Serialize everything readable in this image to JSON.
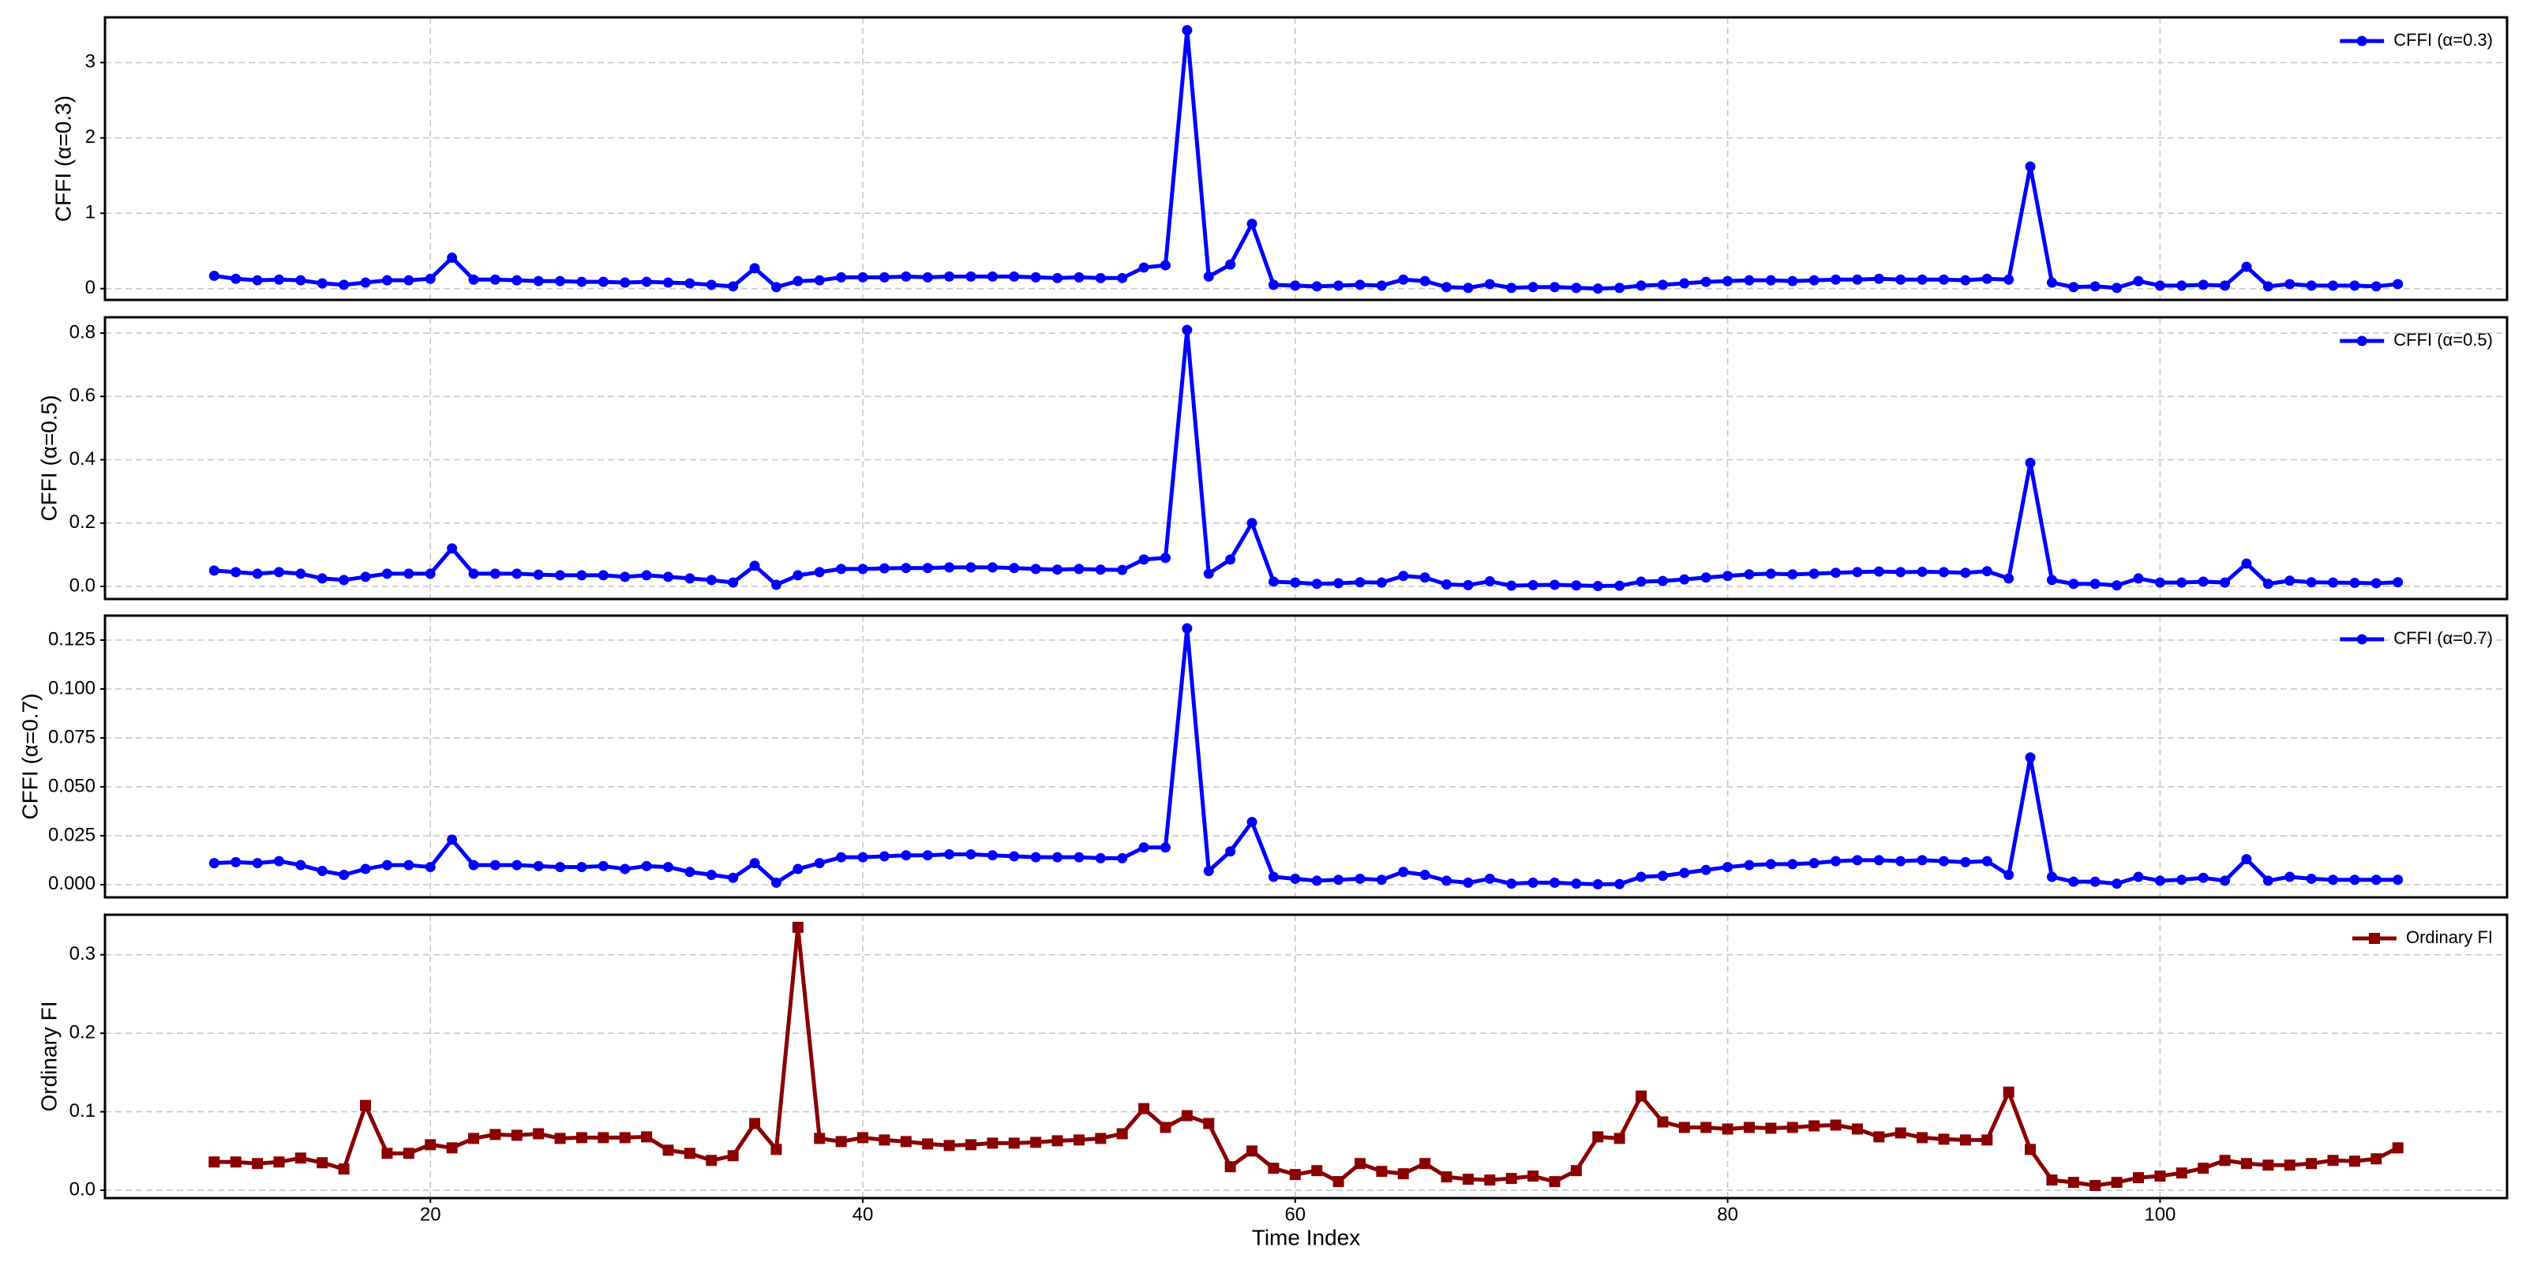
{
  "chart_data": [
    {
      "type": "line",
      "ylabel": "CFFI (α=0.3)",
      "marker": "circle",
      "grid": true,
      "legend": "upper right",
      "x": [
        10,
        11,
        12,
        13,
        14,
        15,
        16,
        17,
        18,
        19,
        20,
        21,
        22,
        23,
        24,
        25,
        26,
        27,
        28,
        29,
        30,
        31,
        32,
        33,
        34,
        35,
        36,
        37,
        38,
        39,
        40,
        41,
        42,
        43,
        44,
        45,
        46,
        47,
        48,
        49,
        50,
        51,
        52,
        53,
        54,
        55,
        56,
        57,
        58,
        59,
        60,
        61,
        62,
        63,
        64,
        65,
        66,
        67,
        68,
        69,
        70,
        71,
        72,
        73,
        74,
        75,
        76,
        77,
        78,
        79,
        80,
        81,
        82,
        83,
        84,
        85,
        86,
        87,
        88,
        89,
        90,
        91,
        92,
        93,
        94,
        95,
        96,
        97,
        98,
        99,
        100,
        101,
        102,
        103,
        104,
        105,
        106,
        107,
        108,
        109,
        110,
        111
      ],
      "xlim": [
        4.95,
        116.05
      ],
      "xticks": [
        20,
        40,
        60,
        80,
        100
      ],
      "ylim": [
        -0.15,
        3.6
      ],
      "yticks": [
        0,
        1,
        2,
        3
      ],
      "series": [
        {
          "name": "CFFI (α=0.3)",
          "color": "#0000ff",
          "values": [
            0.17,
            0.13,
            0.11,
            0.12,
            0.11,
            0.07,
            0.05,
            0.08,
            0.11,
            0.11,
            0.13,
            0.41,
            0.12,
            0.12,
            0.11,
            0.1,
            0.1,
            0.09,
            0.09,
            0.08,
            0.09,
            0.08,
            0.07,
            0.05,
            0.03,
            0.27,
            0.02,
            0.1,
            0.11,
            0.15,
            0.15,
            0.15,
            0.16,
            0.15,
            0.16,
            0.16,
            0.16,
            0.16,
            0.15,
            0.14,
            0.15,
            0.14,
            0.14,
            0.28,
            0.31,
            3.43,
            0.16,
            0.32,
            0.86,
            0.05,
            0.04,
            0.03,
            0.04,
            0.05,
            0.04,
            0.12,
            0.1,
            0.02,
            0.01,
            0.06,
            0.01,
            0.02,
            0.02,
            0.01,
            0.0,
            0.01,
            0.04,
            0.05,
            0.07,
            0.09,
            0.1,
            0.11,
            0.11,
            0.1,
            0.11,
            0.12,
            0.12,
            0.13,
            0.12,
            0.12,
            0.12,
            0.11,
            0.13,
            0.12,
            1.62,
            0.08,
            0.02,
            0.03,
            0.01,
            0.1,
            0.04,
            0.04,
            0.05,
            0.04,
            0.29,
            0.03,
            0.06,
            0.04,
            0.04,
            0.04,
            0.03,
            0.06
          ]
        }
      ]
    },
    {
      "type": "line",
      "ylabel": "CFFI (α=0.5)",
      "marker": "circle",
      "grid": true,
      "legend": "upper right",
      "x": [
        10,
        11,
        12,
        13,
        14,
        15,
        16,
        17,
        18,
        19,
        20,
        21,
        22,
        23,
        24,
        25,
        26,
        27,
        28,
        29,
        30,
        31,
        32,
        33,
        34,
        35,
        36,
        37,
        38,
        39,
        40,
        41,
        42,
        43,
        44,
        45,
        46,
        47,
        48,
        49,
        50,
        51,
        52,
        53,
        54,
        55,
        56,
        57,
        58,
        59,
        60,
        61,
        62,
        63,
        64,
        65,
        66,
        67,
        68,
        69,
        70,
        71,
        72,
        73,
        74,
        75,
        76,
        77,
        78,
        79,
        80,
        81,
        82,
        83,
        84,
        85,
        86,
        87,
        88,
        89,
        90,
        91,
        92,
        93,
        94,
        95,
        96,
        97,
        98,
        99,
        100,
        101,
        102,
        103,
        104,
        105,
        106,
        107,
        108,
        109,
        110,
        111
      ],
      "xlim": [
        4.95,
        116.05
      ],
      "xticks": [
        20,
        40,
        60,
        80,
        100
      ],
      "ylim": [
        -0.04,
        0.85
      ],
      "yticks": [
        {
          "value": 0,
          "label": "0.0"
        },
        0.2,
        0.4,
        0.6,
        0.8
      ],
      "series": [
        {
          "name": "CFFI (α=0.5)",
          "color": "#0000ff",
          "values": [
            0.05,
            0.045,
            0.04,
            0.045,
            0.04,
            0.025,
            0.02,
            0.03,
            0.04,
            0.04,
            0.04,
            0.12,
            0.04,
            0.04,
            0.04,
            0.037,
            0.035,
            0.035,
            0.035,
            0.03,
            0.035,
            0.03,
            0.025,
            0.02,
            0.012,
            0.065,
            0.005,
            0.035,
            0.045,
            0.055,
            0.055,
            0.057,
            0.058,
            0.058,
            0.06,
            0.06,
            0.06,
            0.058,
            0.055,
            0.053,
            0.055,
            0.053,
            0.052,
            0.085,
            0.09,
            0.81,
            0.04,
            0.085,
            0.2,
            0.015,
            0.012,
            0.008,
            0.01,
            0.013,
            0.012,
            0.033,
            0.028,
            0.006,
            0.004,
            0.016,
            0.002,
            0.004,
            0.005,
            0.003,
            0.001,
            0.002,
            0.015,
            0.017,
            0.022,
            0.028,
            0.033,
            0.038,
            0.04,
            0.038,
            0.04,
            0.043,
            0.045,
            0.047,
            0.045,
            0.046,
            0.045,
            0.043,
            0.048,
            0.025,
            0.39,
            0.02,
            0.008,
            0.008,
            0.003,
            0.025,
            0.012,
            0.012,
            0.015,
            0.012,
            0.072,
            0.008,
            0.018,
            0.013,
            0.012,
            0.011,
            0.01,
            0.013
          ]
        }
      ]
    },
    {
      "type": "line",
      "ylabel": "CFFI (α=0.7)",
      "marker": "circle",
      "grid": true,
      "legend": "upper right",
      "x": [
        10,
        11,
        12,
        13,
        14,
        15,
        16,
        17,
        18,
        19,
        20,
        21,
        22,
        23,
        24,
        25,
        26,
        27,
        28,
        29,
        30,
        31,
        32,
        33,
        34,
        35,
        36,
        37,
        38,
        39,
        40,
        41,
        42,
        43,
        44,
        45,
        46,
        47,
        48,
        49,
        50,
        51,
        52,
        53,
        54,
        55,
        56,
        57,
        58,
        59,
        60,
        61,
        62,
        63,
        64,
        65,
        66,
        67,
        68,
        69,
        70,
        71,
        72,
        73,
        74,
        75,
        76,
        77,
        78,
        79,
        80,
        81,
        82,
        83,
        84,
        85,
        86,
        87,
        88,
        89,
        90,
        91,
        92,
        93,
        94,
        95,
        96,
        97,
        98,
        99,
        100,
        101,
        102,
        103,
        104,
        105,
        106,
        107,
        108,
        109,
        110,
        111
      ],
      "xlim": [
        4.95,
        116.05
      ],
      "xticks": [
        20,
        40,
        60,
        80,
        100
      ],
      "ylim": [
        -0.0065,
        0.1375
      ],
      "yticks": [
        {
          "value": 0,
          "label": "0.000"
        },
        0.025,
        {
          "value": 0.05,
          "label": "0.050"
        },
        0.075,
        {
          "value": 0.1,
          "label": "0.100"
        },
        0.125
      ],
      "series": [
        {
          "name": "CFFI (α=0.7)",
          "color": "#0000ff",
          "values": [
            0.011,
            0.0115,
            0.011,
            0.012,
            0.01,
            0.007,
            0.005,
            0.008,
            0.01,
            0.01,
            0.009,
            0.023,
            0.01,
            0.01,
            0.01,
            0.0095,
            0.009,
            0.009,
            0.0095,
            0.008,
            0.0095,
            0.009,
            0.0065,
            0.005,
            0.0035,
            0.011,
            0.001,
            0.008,
            0.011,
            0.014,
            0.014,
            0.0145,
            0.015,
            0.015,
            0.0155,
            0.0155,
            0.015,
            0.0145,
            0.014,
            0.014,
            0.014,
            0.0135,
            0.0135,
            0.019,
            0.019,
            0.131,
            0.007,
            0.017,
            0.032,
            0.004,
            0.003,
            0.002,
            0.0025,
            0.003,
            0.0025,
            0.0065,
            0.005,
            0.002,
            0.001,
            0.003,
            0.0005,
            0.001,
            0.001,
            0.0005,
            0.0002,
            0.0003,
            0.004,
            0.0045,
            0.006,
            0.0075,
            0.009,
            0.01,
            0.0105,
            0.0105,
            0.011,
            0.012,
            0.0125,
            0.0125,
            0.012,
            0.0125,
            0.012,
            0.0115,
            0.012,
            0.005,
            0.065,
            0.004,
            0.0015,
            0.0015,
            0.0005,
            0.004,
            0.002,
            0.0025,
            0.0035,
            0.002,
            0.013,
            0.002,
            0.004,
            0.003,
            0.0025,
            0.0025,
            0.0025,
            0.0025
          ]
        }
      ]
    },
    {
      "type": "line",
      "ylabel": "Ordinary FI",
      "xlabel": "Time Index",
      "marker": "square",
      "grid": true,
      "legend": "upper right",
      "x": [
        10,
        11,
        12,
        13,
        14,
        15,
        16,
        17,
        18,
        19,
        20,
        21,
        22,
        23,
        24,
        25,
        26,
        27,
        28,
        29,
        30,
        31,
        32,
        33,
        34,
        35,
        36,
        37,
        38,
        39,
        40,
        41,
        42,
        43,
        44,
        45,
        46,
        47,
        48,
        49,
        50,
        51,
        52,
        53,
        54,
        55,
        56,
        57,
        58,
        59,
        60,
        61,
        62,
        63,
        64,
        65,
        66,
        67,
        68,
        69,
        70,
        71,
        72,
        73,
        74,
        75,
        76,
        77,
        78,
        79,
        80,
        81,
        82,
        83,
        84,
        85,
        86,
        87,
        88,
        89,
        90,
        91,
        92,
        93,
        94,
        95,
        96,
        97,
        98,
        99,
        100,
        101,
        102,
        103,
        104,
        105,
        106,
        107,
        108,
        109,
        110,
        111
      ],
      "xlim": [
        4.95,
        116.05
      ],
      "xticks": [
        20,
        40,
        60,
        80,
        100
      ],
      "ylim": [
        -0.01,
        0.351
      ],
      "yticks": [
        {
          "value": 0,
          "label": "0.0"
        },
        0.1,
        0.2,
        0.3
      ],
      "series": [
        {
          "name": "Ordinary FI",
          "color": "#8b0000",
          "values": [
            0.036,
            0.036,
            0.034,
            0.036,
            0.041,
            0.035,
            0.027,
            0.108,
            0.047,
            0.047,
            0.058,
            0.054,
            0.066,
            0.071,
            0.07,
            0.072,
            0.066,
            0.067,
            0.067,
            0.067,
            0.068,
            0.051,
            0.047,
            0.038,
            0.044,
            0.085,
            0.052,
            0.335,
            0.066,
            0.062,
            0.067,
            0.064,
            0.062,
            0.059,
            0.057,
            0.058,
            0.06,
            0.06,
            0.061,
            0.063,
            0.064,
            0.066,
            0.072,
            0.104,
            0.08,
            0.095,
            0.085,
            0.03,
            0.05,
            0.028,
            0.02,
            0.025,
            0.011,
            0.034,
            0.024,
            0.021,
            0.034,
            0.017,
            0.014,
            0.013,
            0.015,
            0.018,
            0.011,
            0.025,
            0.068,
            0.066,
            0.12,
            0.087,
            0.08,
            0.08,
            0.078,
            0.08,
            0.079,
            0.08,
            0.082,
            0.083,
            0.078,
            0.068,
            0.073,
            0.067,
            0.065,
            0.064,
            0.064,
            0.125,
            0.052,
            0.013,
            0.01,
            0.006,
            0.01,
            0.016,
            0.018,
            0.022,
            0.028,
            0.038,
            0.034,
            0.032,
            0.032,
            0.034,
            0.038,
            0.037,
            0.04,
            0.054
          ]
        }
      ]
    }
  ]
}
